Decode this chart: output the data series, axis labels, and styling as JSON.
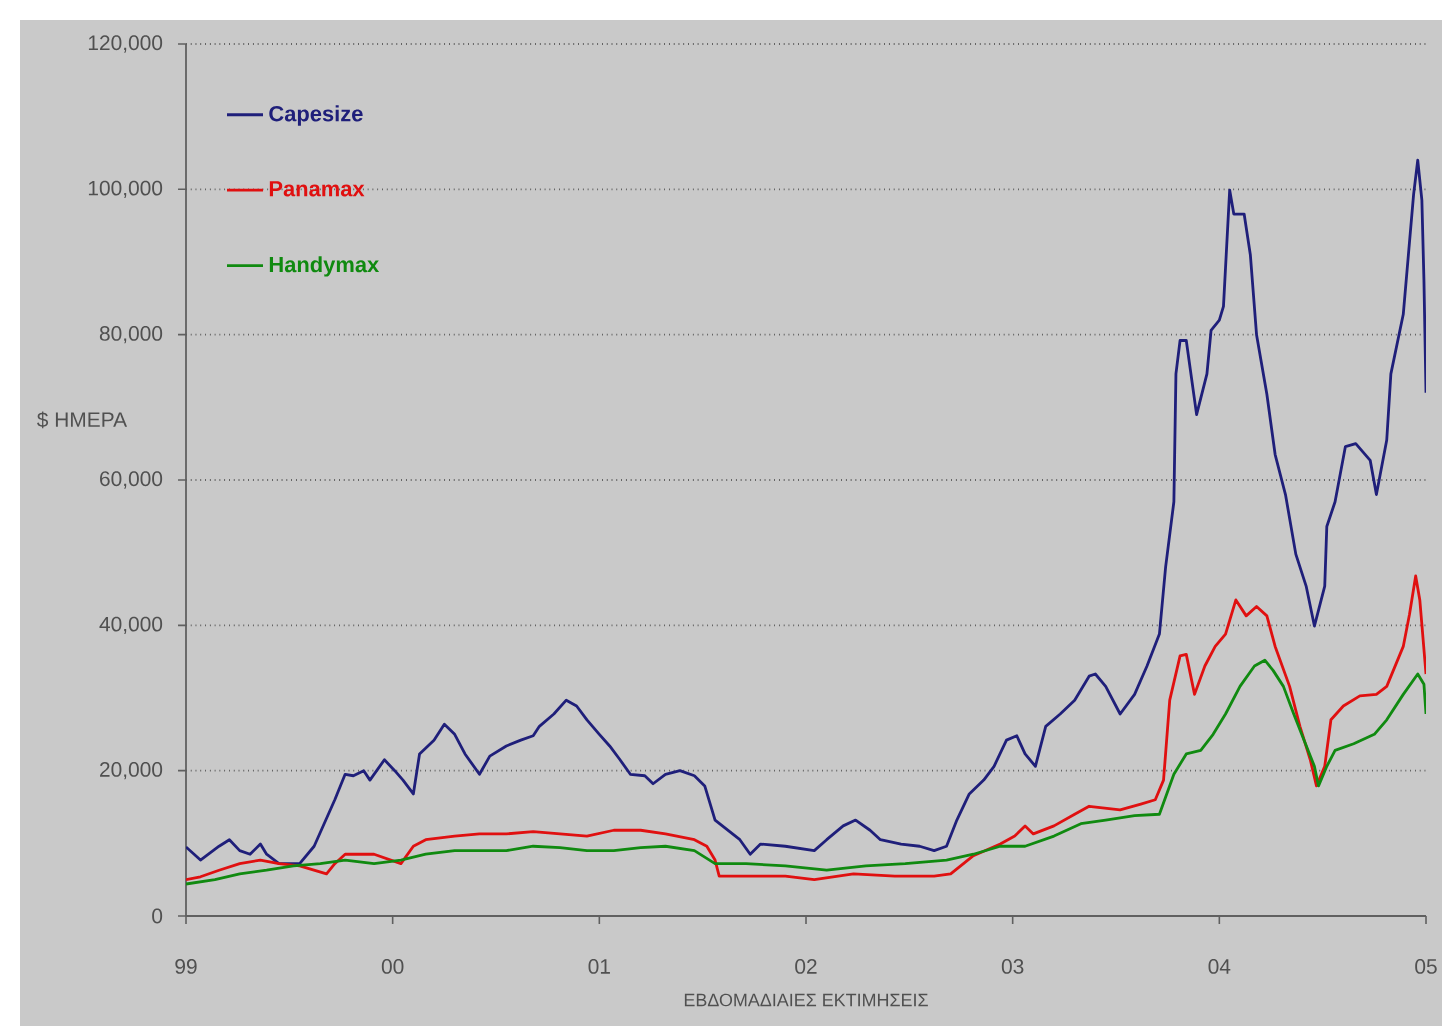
{
  "chart_data": {
    "type": "line",
    "xlabel": "ΕΒΔΟΜΑΔΙΑΙΕΣ ΕΚΤΙΜΗΣΕΙΣ",
    "ylabel": "$ ΗΜΕΡΑ",
    "xlim": [
      1999,
      2005
    ],
    "xticks": [
      {
        "value": 1999,
        "label": "99"
      },
      {
        "value": 2000,
        "label": "00"
      },
      {
        "value": 2001,
        "label": "01"
      },
      {
        "value": 2002,
        "label": "02"
      },
      {
        "value": 2003,
        "label": "03"
      },
      {
        "value": 2004,
        "label": "04"
      },
      {
        "value": 2005,
        "label": "05"
      }
    ],
    "ylim": [
      0,
      120000
    ],
    "yticks": [
      0,
      {
        "value": 20000,
        "label": "20,000"
      },
      {
        "value": 40000,
        "label": "40,000"
      },
      {
        "value": 60000,
        "label": "60,000"
      },
      {
        "value": 80000,
        "label": "80,000"
      },
      {
        "value": 100000,
        "label": "100,000"
      },
      {
        "value": 120000,
        "label": "120,000"
      }
    ],
    "grid": "y",
    "legend": "top left",
    "line_style": "solid",
    "series": [
      {
        "name": "Capesize",
        "color": "#1f1f7a",
        "x": [
          1999.0,
          1999.07,
          1999.16,
          1999.21,
          1999.26,
          1999.31,
          1999.36,
          1999.39,
          1999.45,
          1999.55,
          1999.62,
          1999.72,
          1999.77,
          1999.81,
          1999.86,
          1999.89,
          1999.96,
          2000.01,
          2000.05,
          2000.1,
          2000.13,
          2000.2,
          2000.25,
          2000.3,
          2000.35,
          2000.42,
          2000.47,
          2000.55,
          2000.62,
          2000.68,
          2000.71,
          2000.78,
          2000.84,
          2000.89,
          2000.94,
          2001.0,
          2001.05,
          2001.1,
          2001.15,
          2001.22,
          2001.26,
          2001.32,
          2001.39,
          2001.46,
          2001.51,
          2001.56,
          2001.68,
          2001.73,
          2001.78,
          2001.9,
          2002.04,
          2002.1,
          2002.18,
          2002.24,
          2002.31,
          2002.36,
          2002.46,
          2002.55,
          2002.62,
          2002.68,
          2002.73,
          2002.79,
          2002.86,
          2002.91,
          2002.97,
          2003.02,
          2003.06,
          2003.11,
          2003.16,
          2003.23,
          2003.3,
          2003.37,
          2003.4,
          2003.45,
          2003.52,
          2003.59,
          2003.65,
          2003.71,
          2003.74,
          2003.78,
          2003.79,
          2003.81,
          2003.84,
          2003.89,
          2003.94,
          2003.96,
          2004.0,
          2004.02,
          2004.05,
          2004.07,
          2004.12,
          2004.15,
          2004.18,
          2004.23,
          2004.27,
          2004.32,
          2004.37,
          2004.42,
          2004.46,
          2004.51,
          2004.52,
          2004.56,
          2004.61,
          2004.66,
          2004.73,
          2004.76,
          2004.81,
          2004.83,
          2004.89,
          2004.94,
          2004.96,
          2004.98,
          2004.99,
          2005.0
        ],
        "values": [
          9500,
          7700,
          9600,
          10500,
          9000,
          8500,
          9900,
          8500,
          7200,
          7200,
          9600,
          16000,
          19500,
          19300,
          20000,
          18700,
          21500,
          20000,
          18700,
          16800,
          22300,
          24200,
          26400,
          25000,
          22300,
          19500,
          22000,
          23400,
          24200,
          24800,
          26100,
          27800,
          29700,
          28900,
          27000,
          25000,
          23400,
          21500,
          19500,
          19300,
          18200,
          19500,
          20000,
          19300,
          17900,
          13200,
          10500,
          8500,
          9900,
          9600,
          9000,
          10500,
          12400,
          13200,
          11800,
          10500,
          9900,
          9600,
          9000,
          9600,
          13200,
          16800,
          18700,
          20600,
          24200,
          24800,
          22300,
          20600,
          26100,
          27800,
          29700,
          33000,
          33300,
          31600,
          27800,
          30500,
          34400,
          38800,
          48000,
          57000,
          74600,
          79200,
          79200,
          69000,
          74600,
          80600,
          82000,
          83900,
          99900,
          96600,
          96600,
          91000,
          80000,
          71800,
          63500,
          58000,
          49800,
          45400,
          39900,
          45400,
          53600,
          57000,
          64600,
          65000,
          62700,
          58000,
          65500,
          74600,
          82800,
          99300,
          104000,
          98500,
          87500,
          72000
        ]
      },
      {
        "name": "Panamax",
        "color": "#e01010",
        "x": [
          1999.0,
          1999.07,
          1999.16,
          1999.26,
          1999.36,
          1999.45,
          1999.55,
          1999.68,
          1999.72,
          1999.77,
          1999.91,
          2000.04,
          2000.1,
          2000.16,
          2000.3,
          2000.42,
          2000.55,
          2000.68,
          2000.81,
          2000.94,
          2001.07,
          2001.2,
          2001.32,
          2001.46,
          2001.52,
          2001.56,
          2001.58,
          2001.71,
          2001.9,
          2002.04,
          2002.23,
          2002.43,
          2002.62,
          2002.7,
          2002.81,
          2002.94,
          2003.01,
          2003.06,
          2003.1,
          2003.2,
          2003.3,
          2003.37,
          2003.52,
          2003.62,
          2003.69,
          2003.73,
          2003.76,
          2003.81,
          2003.84,
          2003.88,
          2003.93,
          2003.98,
          2004.03,
          2004.08,
          2004.13,
          2004.18,
          2004.23,
          2004.27,
          2004.34,
          2004.39,
          2004.44,
          2004.47,
          2004.51,
          2004.54,
          2004.6,
          2004.68,
          2004.76,
          2004.81,
          2004.89,
          2004.92,
          2004.95,
          2004.97,
          2005.0
        ],
        "values": [
          5000,
          5400,
          6300,
          7200,
          7700,
          7200,
          6900,
          5800,
          7200,
          8500,
          8500,
          7200,
          9600,
          10500,
          11000,
          11300,
          11300,
          11600,
          11300,
          11000,
          11800,
          11800,
          11300,
          10500,
          9600,
          7700,
          5500,
          5500,
          5500,
          5000,
          5800,
          5500,
          5500,
          5800,
          8300,
          9900,
          11000,
          12400,
          11300,
          12400,
          14000,
          15100,
          14600,
          15400,
          16000,
          18700,
          29700,
          35800,
          36000,
          30500,
          34400,
          37100,
          38800,
          43500,
          41300,
          42600,
          41300,
          37100,
          31600,
          26100,
          21500,
          17900,
          20600,
          27000,
          28900,
          30300,
          30500,
          31600,
          37100,
          41500,
          46800,
          43500,
          33300
        ]
      },
      {
        "name": "Handymax",
        "color": "#108a10",
        "x": [
          1999.0,
          1999.14,
          1999.26,
          1999.39,
          1999.52,
          1999.65,
          1999.77,
          1999.91,
          2000.04,
          2000.16,
          2000.3,
          2000.42,
          2000.55,
          2000.68,
          2000.81,
          2000.94,
          2001.07,
          2001.2,
          2001.32,
          2001.46,
          2001.56,
          2001.71,
          2001.9,
          2002.1,
          2002.29,
          2002.48,
          2002.68,
          2002.81,
          2002.94,
          2003.06,
          2003.2,
          2003.33,
          2003.45,
          2003.59,
          2003.71,
          2003.78,
          2003.84,
          2003.91,
          2003.97,
          2004.03,
          2004.1,
          2004.17,
          2004.22,
          2004.26,
          2004.31,
          2004.36,
          2004.41,
          2004.46,
          2004.48,
          2004.52,
          2004.56,
          2004.65,
          2004.75,
          2004.81,
          2004.89,
          2004.96,
          2004.99,
          2005.0
        ],
        "values": [
          4400,
          5000,
          5800,
          6300,
          6900,
          7200,
          7700,
          7200,
          7700,
          8500,
          9000,
          9000,
          9000,
          9600,
          9400,
          9000,
          9000,
          9400,
          9600,
          9000,
          7200,
          7200,
          6900,
          6300,
          6900,
          7200,
          7700,
          8500,
          9600,
          9600,
          11000,
          12700,
          13200,
          13800,
          14000,
          19500,
          22300,
          22800,
          25000,
          27800,
          31600,
          34400,
          35200,
          33800,
          31600,
          27800,
          24200,
          20600,
          17900,
          20600,
          22800,
          23700,
          25000,
          27000,
          30500,
          33300,
          31900,
          27800
        ]
      }
    ]
  }
}
